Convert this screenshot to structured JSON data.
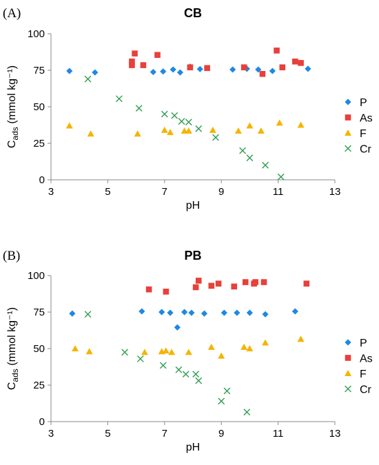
{
  "chart_data": [
    {
      "type": "scatter",
      "panel_label": "(A)",
      "title": "CB",
      "xlabel": "pH",
      "ylabel": "C",
      "ylabel_sub": "ads",
      "ylabel_unit": " (mmol kg⁻¹)",
      "xlim": [
        3,
        13
      ],
      "ylim": [
        0,
        100
      ],
      "xticks": [
        3,
        5,
        7,
        9,
        11,
        13
      ],
      "yticks": [
        0,
        25,
        50,
        75,
        100
      ],
      "grid": false,
      "legend_position": "right",
      "series": [
        {
          "name": "P",
          "marker": "diamond",
          "color": "#1E88E5",
          "points": [
            [
              3.65,
              74.5
            ],
            [
              4.55,
              73.5
            ],
            [
              6.6,
              73.8
            ],
            [
              6.95,
              74.2
            ],
            [
              7.3,
              75.5
            ],
            [
              7.55,
              73.5
            ],
            [
              7.9,
              77.5
            ],
            [
              8.25,
              75.8
            ],
            [
              9.4,
              75.5
            ],
            [
              9.9,
              76
            ],
            [
              10.3,
              75.5
            ],
            [
              10.8,
              74.5
            ],
            [
              12.05,
              76
            ]
          ]
        },
        {
          "name": "As",
          "marker": "square",
          "color": "#E8403A",
          "points": [
            [
              5.85,
              81
            ],
            [
              5.85,
              78.5
            ],
            [
              5.95,
              86.5
            ],
            [
              6.25,
              78.5
            ],
            [
              6.75,
              85.5
            ],
            [
              7.9,
              77
            ],
            [
              8.5,
              76.5
            ],
            [
              9.8,
              77
            ],
            [
              10.45,
              72.5
            ],
            [
              10.95,
              88.5
            ],
            [
              11.15,
              77
            ],
            [
              11.6,
              81
            ],
            [
              11.8,
              80
            ]
          ]
        },
        {
          "name": "F",
          "marker": "triangle",
          "color": "#F5B400",
          "points": [
            [
              3.65,
              37
            ],
            [
              4.4,
              31.5
            ],
            [
              6.05,
              31.5
            ],
            [
              7.0,
              34
            ],
            [
              7.2,
              32.5
            ],
            [
              7.7,
              33.5
            ],
            [
              7.85,
              33.5
            ],
            [
              8.7,
              34
            ],
            [
              9.6,
              33.5
            ],
            [
              10.0,
              37
            ],
            [
              10.4,
              33.5
            ],
            [
              11.05,
              39
            ],
            [
              11.8,
              37.5
            ]
          ]
        },
        {
          "name": "Cr",
          "marker": "x",
          "color": "#2E9E4F",
          "points": [
            [
              4.3,
              69
            ],
            [
              5.4,
              55.5
            ],
            [
              6.1,
              49
            ],
            [
              7.0,
              45
            ],
            [
              7.35,
              44
            ],
            [
              7.6,
              40
            ],
            [
              7.85,
              39.5
            ],
            [
              8.2,
              35
            ],
            [
              8.8,
              29
            ],
            [
              9.75,
              20
            ],
            [
              10.0,
              15
            ],
            [
              10.55,
              10
            ],
            [
              11.1,
              2
            ]
          ]
        }
      ]
    },
    {
      "type": "scatter",
      "panel_label": "(B)",
      "title": "PB",
      "xlabel": "pH",
      "ylabel": "C",
      "ylabel_sub": "ads",
      "ylabel_unit": " (mmol kg⁻¹)",
      "xlim": [
        3,
        13
      ],
      "ylim": [
        0,
        100
      ],
      "xticks": [
        3,
        5,
        7,
        9,
        11,
        13
      ],
      "yticks": [
        0,
        25,
        50,
        75,
        100
      ],
      "grid": false,
      "legend_position": "right",
      "series": [
        {
          "name": "P",
          "marker": "diamond",
          "color": "#1E88E5",
          "points": [
            [
              3.75,
              74
            ],
            [
              6.2,
              75.5
            ],
            [
              6.9,
              75
            ],
            [
              7.2,
              74.5
            ],
            [
              7.45,
              64.5
            ],
            [
              7.7,
              75
            ],
            [
              7.95,
              74.5
            ],
            [
              8.4,
              74
            ],
            [
              9.1,
              74.5
            ],
            [
              9.55,
              74.5
            ],
            [
              10.0,
              74.5
            ],
            [
              10.55,
              73.5
            ],
            [
              11.6,
              75.5
            ]
          ]
        },
        {
          "name": "As",
          "marker": "square",
          "color": "#E8403A",
          "points": [
            [
              6.45,
              90.5
            ],
            [
              7.05,
              89
            ],
            [
              8.1,
              92
            ],
            [
              8.2,
              96.5
            ],
            [
              8.65,
              93
            ],
            [
              8.9,
              94.5
            ],
            [
              9.45,
              92.5
            ],
            [
              9.85,
              95.5
            ],
            [
              10.15,
              94.5
            ],
            [
              10.2,
              95.5
            ],
            [
              10.5,
              95.5
            ],
            [
              12.0,
              94.5
            ]
          ]
        },
        {
          "name": "F",
          "marker": "triangle",
          "color": "#F5B400",
          "points": [
            [
              3.85,
              50
            ],
            [
              4.35,
              48
            ],
            [
              6.3,
              47.5
            ],
            [
              6.9,
              48
            ],
            [
              7.05,
              48.5
            ],
            [
              7.25,
              47.5
            ],
            [
              7.85,
              47.5
            ],
            [
              8.65,
              51
            ],
            [
              9.0,
              45
            ],
            [
              9.8,
              51
            ],
            [
              10.0,
              50
            ],
            [
              10.55,
              54
            ],
            [
              11.8,
              56.5
            ]
          ]
        },
        {
          "name": "Cr",
          "marker": "x",
          "color": "#2E9E4F",
          "points": [
            [
              4.3,
              73.5
            ],
            [
              5.6,
              47.5
            ],
            [
              6.15,
              43
            ],
            [
              6.95,
              38.5
            ],
            [
              7.5,
              35.5
            ],
            [
              7.75,
              32.5
            ],
            [
              8.1,
              32.5
            ],
            [
              8.2,
              28
            ],
            [
              9.0,
              14
            ],
            [
              9.2,
              21
            ],
            [
              9.9,
              6.5
            ]
          ]
        }
      ]
    }
  ]
}
